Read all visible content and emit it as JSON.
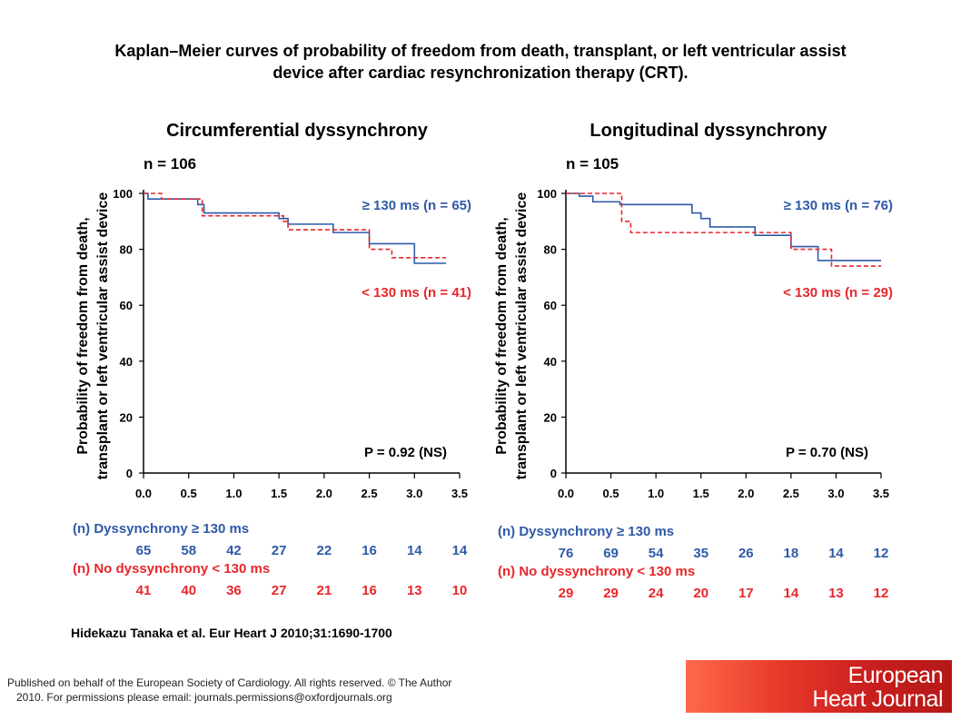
{
  "slide_title_line1": "Kaplan–Meier curves of probability of freedom from death, transplant, or left ventricular assist",
  "slide_title_line2": "device after cardiac resynchronization therapy (CRT).",
  "citation": "Hidekazu Tanaka et al. Eur Heart J 2010;31:1690-1700",
  "footer_line1": "Published on behalf of the European Society of Cardiology. All rights reserved. © The Author",
  "footer_line2": "2010. For permissions please email: journals.permissions@oxfordjournals.org",
  "logo_line1": "European",
  "logo_line2": "Heart Journal",
  "colors": {
    "blue": "#2e5aa8",
    "red": "#e8262a",
    "text_blue": "#2e5aa8",
    "text_red": "#e8262a"
  },
  "chart_data": [
    {
      "type": "line",
      "title": "Circumferential dyssynchrony",
      "n_label": "n = 106",
      "ylabel_line1": "Probability of freedom from death,",
      "ylabel_line2": "transplant or left ventricular assist device",
      "xlim": [
        0,
        3.5
      ],
      "ylim": [
        0,
        100
      ],
      "x_ticks": [
        "0.0",
        "0.5",
        "1.0",
        "1.5",
        "2.0",
        "2.5",
        "3.0",
        "3.5"
      ],
      "y_ticks": [
        "0",
        "20",
        "40",
        "60",
        "80",
        "100"
      ],
      "series": [
        {
          "name": "≥ 130 ms (n = 65)",
          "style": "solid",
          "steps": [
            [
              0,
              100
            ],
            [
              0.05,
              98
            ],
            [
              0.6,
              96
            ],
            [
              0.67,
              93
            ],
            [
              1.5,
              91
            ],
            [
              1.6,
              89
            ],
            [
              2.1,
              86
            ],
            [
              2.5,
              82
            ],
            [
              3.0,
              75
            ],
            [
              3.35,
              75
            ]
          ]
        },
        {
          "name": "< 130 ms (n = 41)",
          "style": "dashed",
          "steps": [
            [
              0,
              100
            ],
            [
              0.1,
              100
            ],
            [
              0.2,
              98
            ],
            [
              0.6,
              98
            ],
            [
              0.65,
              92
            ],
            [
              1.5,
              92
            ],
            [
              1.55,
              90
            ],
            [
              1.6,
              87
            ],
            [
              2.1,
              87
            ],
            [
              2.5,
              80
            ],
            [
              2.75,
              77
            ],
            [
              3.0,
              77
            ],
            [
              3.35,
              77
            ]
          ]
        }
      ],
      "p_value": "P = 0.92 (NS)",
      "risk_table": {
        "row1_label": "(n) Dyssynchrony ≥ 130 ms",
        "row1_values": [
          "65",
          "58",
          "42",
          "27",
          "22",
          "16",
          "14",
          "14"
        ],
        "row2_label": "(n) No dyssynchrony < 130 ms",
        "row2_values": [
          "41",
          "40",
          "36",
          "27",
          "21",
          "16",
          "13",
          "10"
        ]
      }
    },
    {
      "type": "line",
      "title": "Longitudinal dyssynchrony",
      "n_label": "n = 105",
      "ylabel_line1": "Probability of freedom from death,",
      "ylabel_line2": "transplant or left ventricular assist device",
      "xlim": [
        0,
        3.5
      ],
      "ylim": [
        0,
        100
      ],
      "x_ticks": [
        "0.0",
        "0.5",
        "1.0",
        "1.5",
        "2.0",
        "2.5",
        "3.0",
        "3.5"
      ],
      "y_ticks": [
        "0",
        "20",
        "40",
        "60",
        "80",
        "100"
      ],
      "series": [
        {
          "name": "≥ 130 ms (n = 76)",
          "style": "solid",
          "steps": [
            [
              0,
              100
            ],
            [
              0.15,
              99
            ],
            [
              0.3,
              97
            ],
            [
              0.6,
              96
            ],
            [
              1.4,
              93
            ],
            [
              1.5,
              91
            ],
            [
              1.6,
              88
            ],
            [
              2.1,
              85
            ],
            [
              2.5,
              81
            ],
            [
              2.8,
              76
            ],
            [
              3.5,
              76
            ]
          ]
        },
        {
          "name": "< 130 ms (n = 29)",
          "style": "dashed",
          "steps": [
            [
              0,
              100
            ],
            [
              0.6,
              100
            ],
            [
              0.62,
              90
            ],
            [
              0.72,
              86
            ],
            [
              2.0,
              86
            ],
            [
              2.5,
              80
            ],
            [
              2.95,
              74
            ],
            [
              3.5,
              74
            ]
          ]
        }
      ],
      "p_value": "P = 0.70 (NS)",
      "risk_table": {
        "row1_label": "(n) Dyssynchrony ≥ 130 ms",
        "row1_values": [
          "76",
          "69",
          "54",
          "35",
          "26",
          "18",
          "14",
          "12"
        ],
        "row2_label": "(n) No dyssynchrony < 130 ms",
        "row2_values": [
          "29",
          "29",
          "24",
          "20",
          "17",
          "14",
          "13",
          "12"
        ]
      }
    }
  ]
}
